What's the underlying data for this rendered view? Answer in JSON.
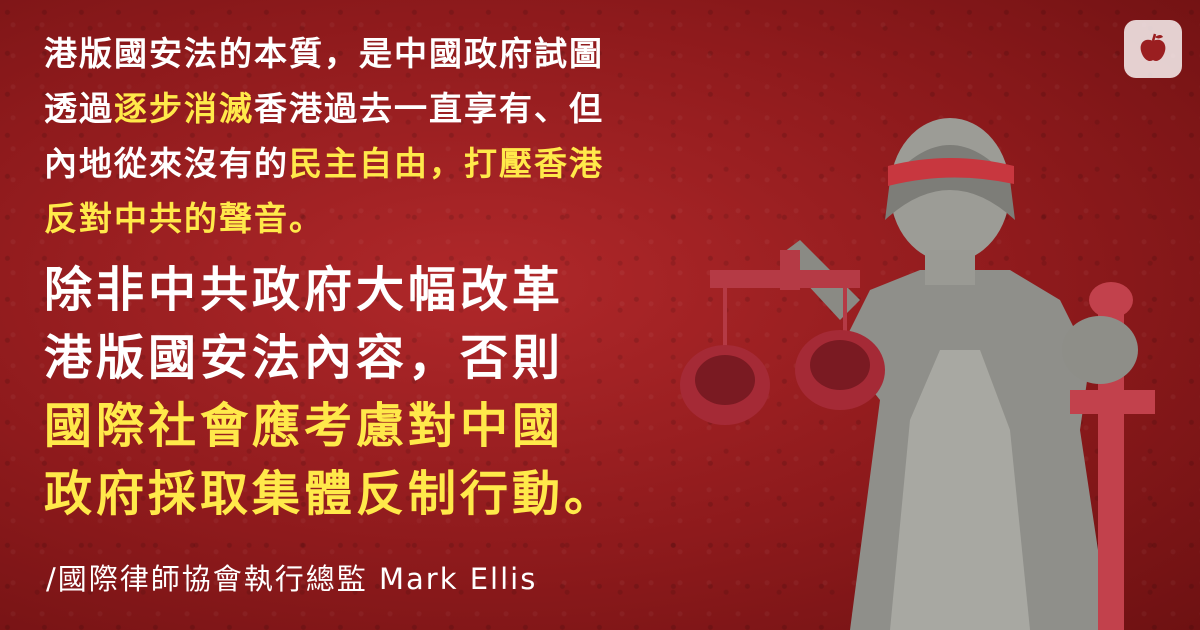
{
  "quote_intro": {
    "l1": "港版國安法的本質，是中國政府試圖",
    "l2a": "透過",
    "l2b": "逐步消滅",
    "l2c": "香港過去一直享有、但",
    "l3a": "內地從來沒有的",
    "l3b": "民主自由，打壓香港",
    "l4": "反對中共的聲音。"
  },
  "quote_main": {
    "l1": "除非中共政府大幅改革",
    "l2": "港版國安法內容，否則",
    "l3": "國際社會應考慮對中國",
    "l4": "政府採取集體反制行動。"
  },
  "author": "/國際律師協會執行總監 Mark Ellis",
  "colors": {
    "background": "#9a1e20",
    "highlight": "#ffe94a",
    "text": "#ffffff"
  },
  "icons": {
    "logo": "apple-logo-icon",
    "statue": "lady-justice-statue"
  }
}
